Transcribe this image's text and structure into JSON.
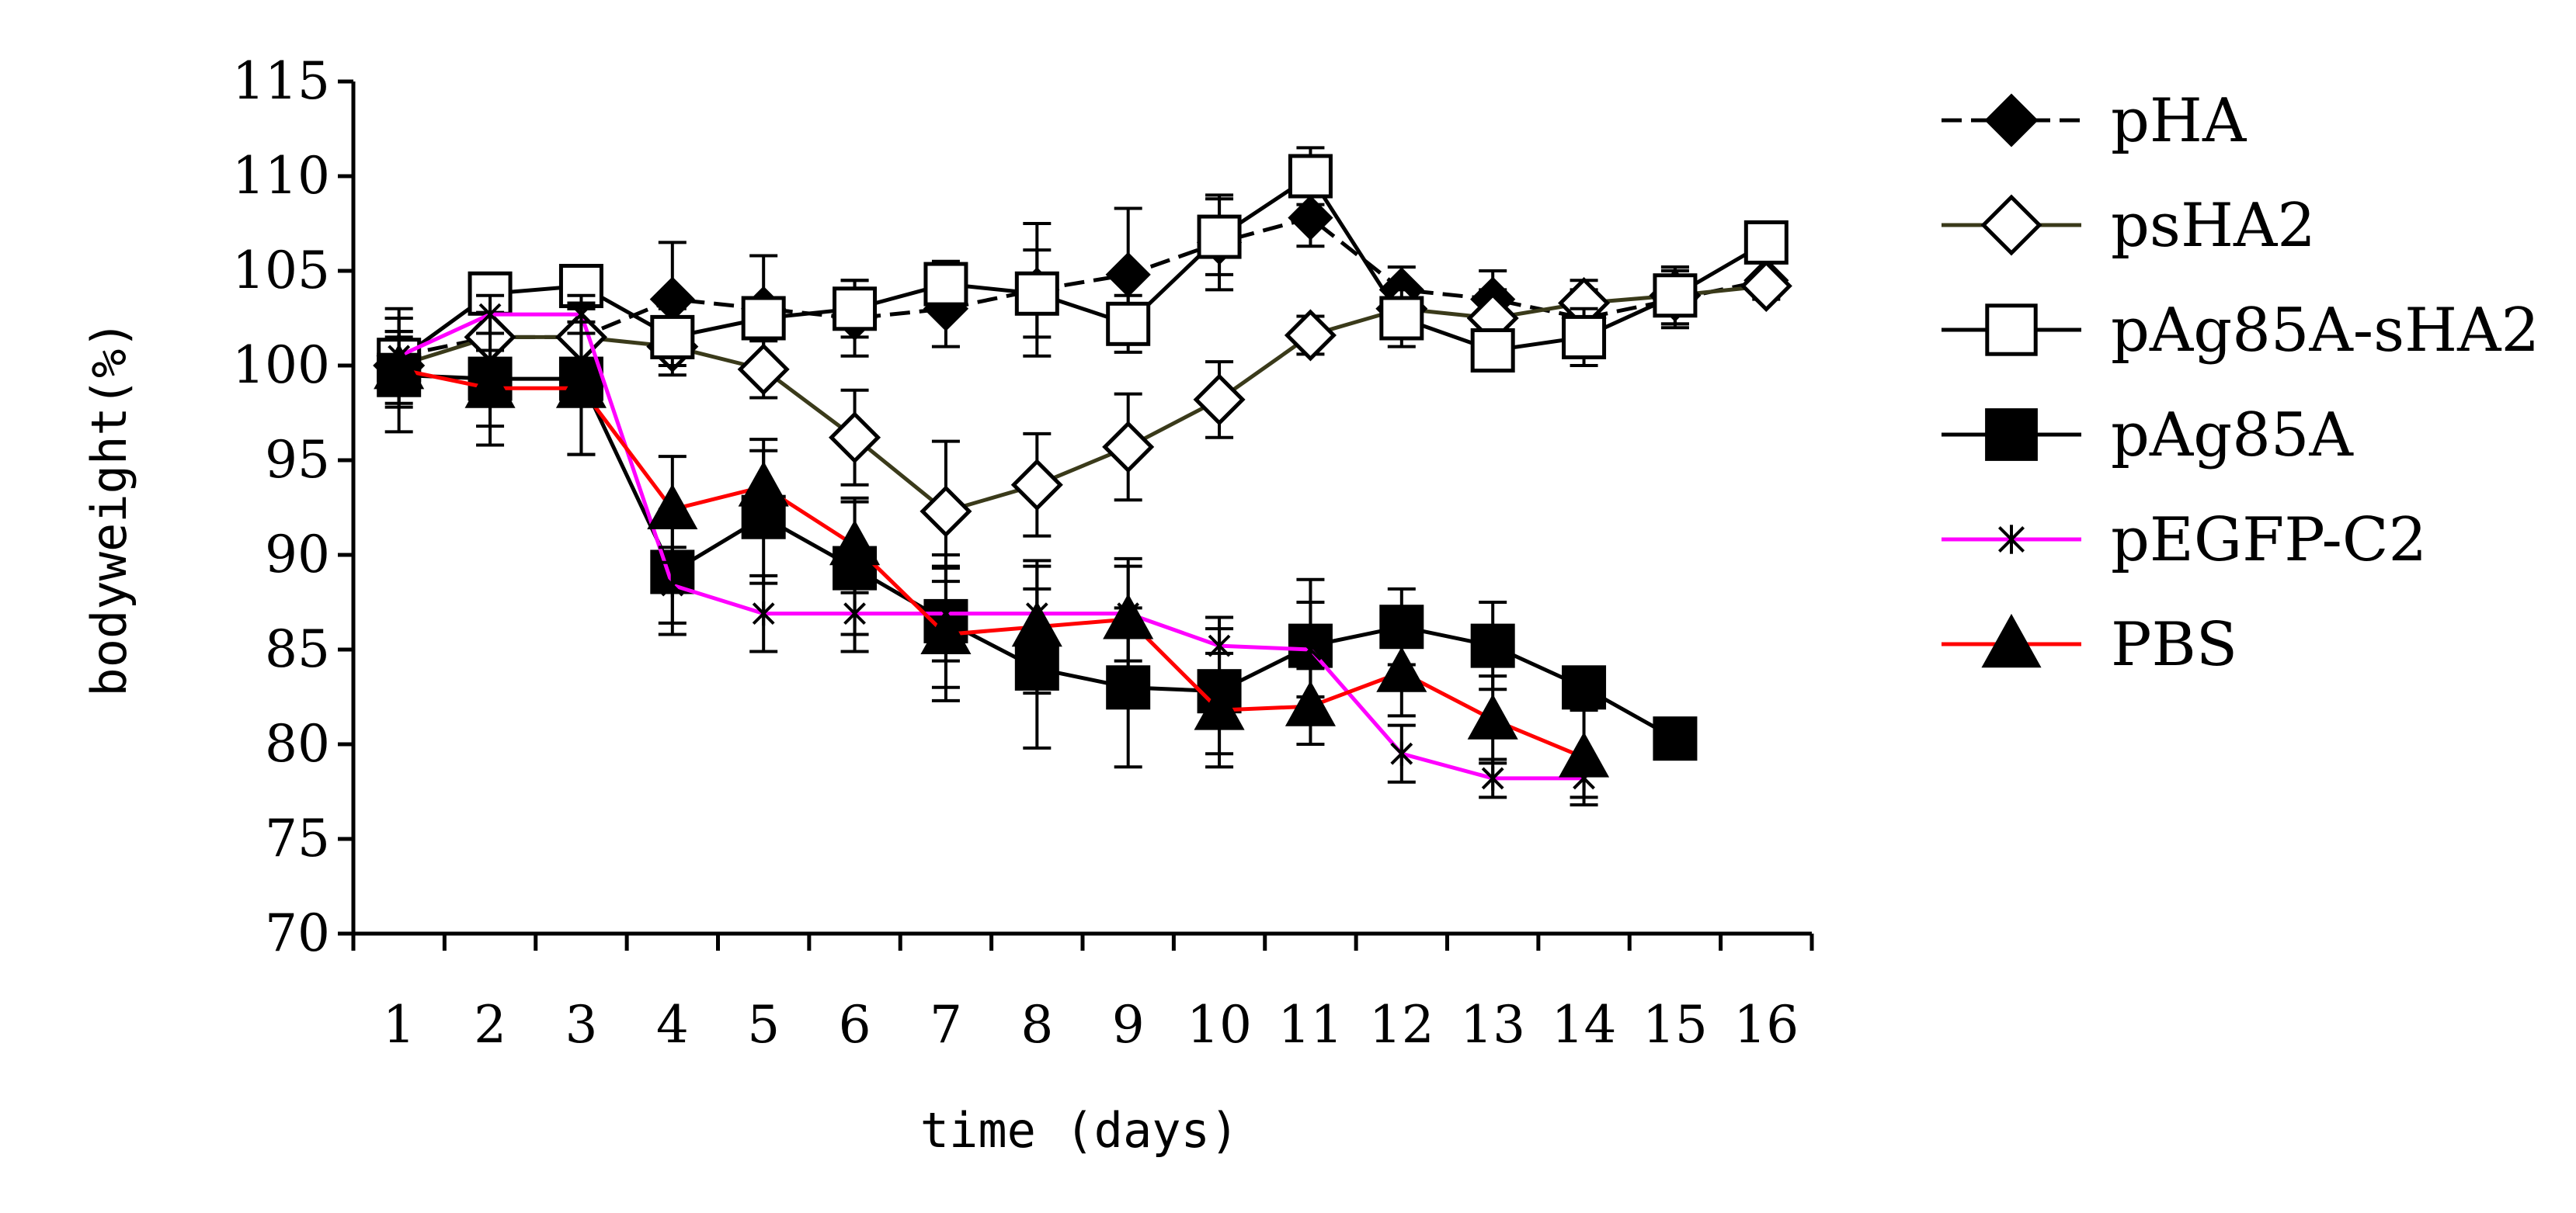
{
  "chart_data": {
    "type": "line",
    "title": "",
    "xlabel": "time (days)",
    "ylabel": "bodyweight(%)",
    "ylim": [
      70,
      115
    ],
    "yticks": [
      70,
      75,
      80,
      85,
      90,
      95,
      100,
      105,
      110,
      115
    ],
    "categories": [
      "1",
      "2",
      "3",
      "4",
      "5",
      "6",
      "7",
      "8",
      "9",
      "10",
      "11",
      "12",
      "13",
      "14",
      "15",
      "16"
    ],
    "grid": false,
    "legend_position": "right",
    "series": [
      {
        "name": "pHA",
        "color": "#000000",
        "marker": "filled-diamond",
        "dash": "dashed",
        "values": [
          100.5,
          101.5,
          101.5,
          103.5,
          103.0,
          102.5,
          103.0,
          104.0,
          104.8,
          106.5,
          107.8,
          104.0,
          103.5,
          102.5,
          103.5,
          104.5
        ],
        "errors": [
          2.5,
          1.5,
          1.5,
          3.0,
          2.8,
          2.0,
          2.0,
          3.5,
          3.5,
          2.5,
          1.5,
          1.2,
          1.5,
          1.5,
          1.5,
          1.0
        ]
      },
      {
        "name": "psHA2",
        "color": "#3a3a1a",
        "marker": "open-diamond",
        "dash": "solid",
        "values": [
          100.0,
          101.5,
          101.5,
          101.0,
          99.8,
          96.2,
          92.3,
          93.7,
          95.7,
          98.2,
          101.6,
          103.0,
          102.5,
          103.3,
          103.7,
          104.2
        ],
        "errors": [
          1.5,
          1.5,
          1.5,
          1.5,
          1.5,
          2.5,
          3.7,
          2.7,
          2.8,
          2.0,
          1.0,
          1.0,
          1.5,
          1.2,
          1.5,
          0.5
        ]
      },
      {
        "name": "pAg85A-sHA2",
        "color": "#000000",
        "marker": "open-square",
        "dash": "solid",
        "values": [
          100.3,
          103.8,
          104.2,
          101.5,
          102.5,
          103.0,
          104.3,
          103.8,
          102.2,
          106.8,
          110.0,
          102.5,
          100.8,
          101.5,
          103.7,
          106.5
        ],
        "errors": [
          1.5,
          1.0,
          1.0,
          1.5,
          1.0,
          1.5,
          1.2,
          2.3,
          1.5,
          2.0,
          1.5,
          1.5,
          1.0,
          1.5,
          1.5,
          1.0
        ]
      },
      {
        "name": "pAg85A",
        "color": "#000000",
        "marker": "filled-square",
        "dash": "solid",
        "values": [
          99.5,
          99.3,
          99.3,
          89.1,
          92.0,
          89.3,
          86.5,
          84.0,
          83.0,
          82.8,
          85.2,
          86.2,
          85.2,
          83.0,
          80.3,
          null
        ],
        "errors": [
          3.0,
          3.5,
          4.0,
          3.3,
          3.5,
          3.5,
          3.5,
          4.2,
          4.2,
          3.3,
          3.5,
          2.0,
          2.3,
          0,
          0,
          0
        ]
      },
      {
        "name": "pEGFP-C2",
        "color": "#ff00ff",
        "marker": "asterisk",
        "dash": "solid",
        "values": [
          100.5,
          102.7,
          102.7,
          88.4,
          86.9,
          86.9,
          86.9,
          86.9,
          86.9,
          85.2,
          85.0,
          79.5,
          78.2,
          78.2,
          null,
          null
        ],
        "errors": [
          2.0,
          1.0,
          1.0,
          2.0,
          2.0,
          2.0,
          2.5,
          2.5,
          2.5,
          1.5,
          2.5,
          1.5,
          1.0,
          1.0,
          0,
          0
        ]
      },
      {
        "name": "PBS",
        "color": "#ff0000",
        "marker": "filled-triangle",
        "dash": "solid",
        "values": [
          99.8,
          98.8,
          98.8,
          92.4,
          93.6,
          90.5,
          85.8,
          86.2,
          86.6,
          81.8,
          82.0,
          83.8,
          81.3,
          79.3,
          null,
          null
        ],
        "errors": [
          2.0,
          2.0,
          3.5,
          2.8,
          2.5,
          2.5,
          3.5,
          3.5,
          3.2,
          3.0,
          2.0,
          2.3,
          2.3,
          2.5,
          0,
          0
        ]
      }
    ]
  }
}
